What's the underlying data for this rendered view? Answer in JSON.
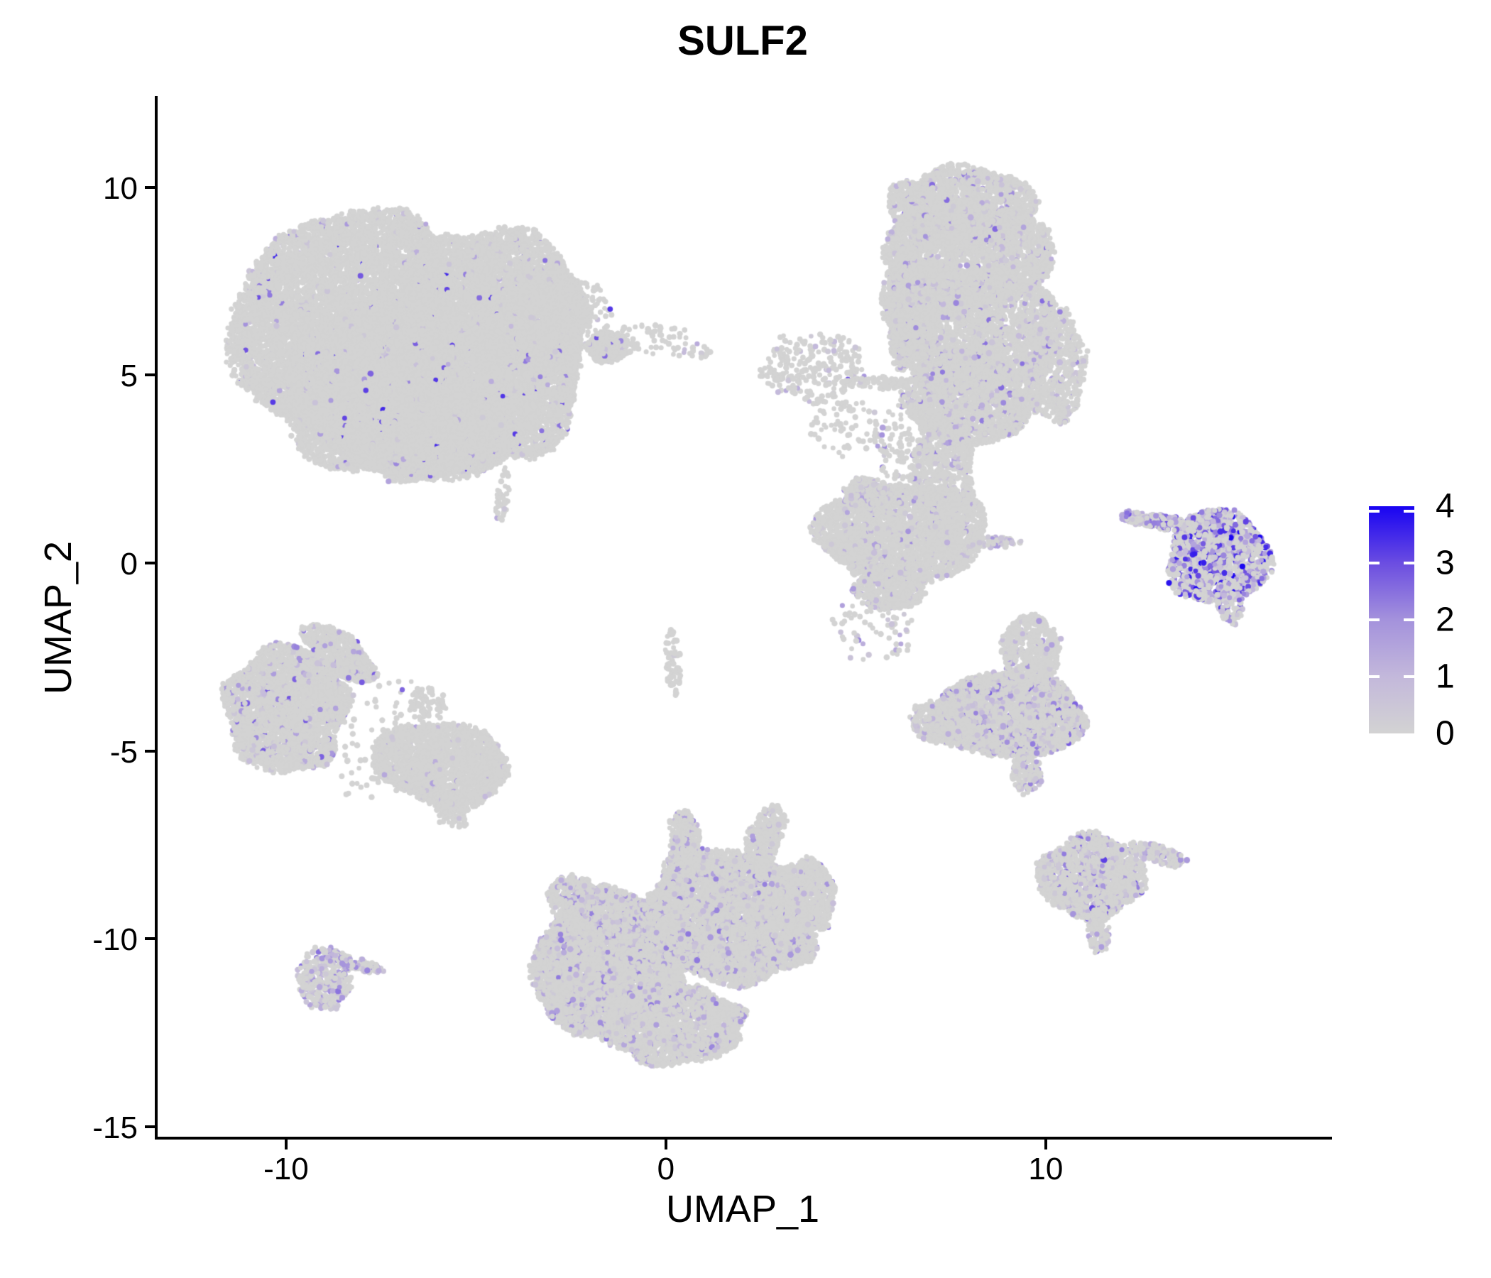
{
  "page": {
    "background": "#ffffff",
    "axis_color": "#000000"
  },
  "chart_data": {
    "type": "scatter",
    "title": "SULF2",
    "xlabel": "UMAP_1",
    "ylabel": "UMAP_2",
    "xlim": [
      -13.42,
      17.46
    ],
    "ylim": [
      -15.31,
      12.4
    ],
    "grid": false,
    "x_ticks": {
      "values": [
        -10,
        0,
        10
      ],
      "labels": [
        "-10",
        "0",
        "10"
      ]
    },
    "y_ticks": {
      "values": [
        10,
        5,
        0,
        -5,
        -10,
        -15
      ],
      "labels": [
        "10",
        "5",
        "0",
        "-5",
        "-10",
        "-15"
      ]
    },
    "legend": {
      "position": "right",
      "break_values": [
        4,
        3,
        2,
        1,
        0
      ],
      "break_labels": [
        "4",
        "3",
        "2",
        "1",
        "0"
      ],
      "low_color": "#d3d3d3",
      "high_color": "#1803f2"
    },
    "color_scale_stops": [
      [
        0.0,
        "#d3d3d3"
      ],
      [
        0.25,
        "#c3b8db"
      ],
      [
        0.5,
        "#a492dc"
      ],
      [
        0.75,
        "#6b4de1"
      ],
      [
        1.0,
        "#1803f2"
      ]
    ],
    "point_radius_px": [
      3.3,
      4.4
    ],
    "expression_range": [
      0,
      4
    ],
    "clusters": [
      {
        "name": "big-left-blob",
        "frac": 0.035,
        "vmax": 3.6,
        "vpow": 2.4,
        "blobs": [
          {
            "cx": -8.3,
            "cy": 6.2,
            "rx": 3.05,
            "ry": 3.2,
            "n": 8500
          },
          {
            "cx": -4.7,
            "cy": 5.8,
            "rx": 2.55,
            "ry": 3.25,
            "n": 7500
          },
          {
            "cx": -6.7,
            "cy": 4.5,
            "rx": 3.4,
            "ry": 2.3,
            "n": 6500
          },
          {
            "cx": -6.7,
            "cy": 3.2,
            "rx": 1.8,
            "ry": 1.0,
            "n": 1500
          },
          {
            "cx": -3.1,
            "cy": 6.6,
            "rx": 1.05,
            "ry": 1.35,
            "n": 1200
          },
          {
            "cx": -2.2,
            "cy": 6.6,
            "rx": 0.75,
            "ry": 0.95,
            "n": 130,
            "frac": 0.02
          },
          {
            "cx": -5.9,
            "cy": 7.6,
            "rx": 1.3,
            "ry": 0.55,
            "n": 120,
            "frac": 0.02
          }
        ]
      },
      {
        "name": "top-mid-clump",
        "frac": 0.05,
        "vmax": 3.0,
        "vpow": 2,
        "blobs": [
          {
            "cx": -1.55,
            "cy": 5.75,
            "rx": 0.55,
            "ry": 0.42,
            "n": 260
          },
          {
            "cx": -0.3,
            "cy": 5.95,
            "rx": 1.2,
            "ry": 0.45,
            "n": 70
          },
          {
            "cx": 0.9,
            "cy": 5.6,
            "rx": 0.3,
            "ry": 0.2,
            "n": 14
          }
        ]
      },
      {
        "name": "top-right-tall",
        "frac": 0.1,
        "vmax": 2.6,
        "vpow": 2,
        "blobs": [
          {
            "cx": 7.8,
            "cy": 9.5,
            "rx": 1.95,
            "ry": 1.05,
            "n": 1600
          },
          {
            "cx": 7.9,
            "cy": 8.2,
            "rx": 2.25,
            "ry": 1.5,
            "n": 2600
          },
          {
            "cx": 8.1,
            "cy": 6.2,
            "rx": 2.3,
            "ry": 1.7,
            "n": 2800
          },
          {
            "cx": 8.0,
            "cy": 4.4,
            "rx": 1.75,
            "ry": 1.3,
            "n": 1700
          },
          {
            "cx": 6.4,
            "cy": 6.9,
            "rx": 0.7,
            "ry": 1.5,
            "n": 700
          },
          {
            "cx": 7.3,
            "cy": 2.6,
            "rx": 0.8,
            "ry": 1.7,
            "n": 800,
            "frac": 0.13
          },
          {
            "cx": 10.3,
            "cy": 5.2,
            "rx": 0.75,
            "ry": 1.5,
            "n": 550,
            "frac": 0.13
          },
          {
            "cx": 6.1,
            "cy": 3.1,
            "rx": 0.6,
            "ry": 1.0,
            "rot": 20,
            "n": 90
          }
        ]
      },
      {
        "name": "scatter-left-of-tall",
        "frac": 0.06,
        "vmax": 3.0,
        "vpow": 2,
        "blobs": [
          {
            "cx": 3.9,
            "cy": 5.2,
            "rx": 1.35,
            "ry": 0.95,
            "n": 240
          },
          {
            "cx": 5.7,
            "cy": 4.8,
            "rx": 1.05,
            "ry": 0.16,
            "n": 110,
            "frac": 0.02
          },
          {
            "cx": 4.8,
            "cy": 3.6,
            "rx": 1.0,
            "ry": 0.8,
            "n": 60,
            "frac": 0.02
          }
        ]
      },
      {
        "name": "mid-right-wide",
        "frac": 0.09,
        "vmax": 2.2,
        "vpow": 2,
        "blobs": [
          {
            "cx": 6.2,
            "cy": 0.8,
            "rx": 2.25,
            "ry": 1.35,
            "n": 2600
          },
          {
            "cx": 5.3,
            "cy": 1.9,
            "rx": 0.6,
            "ry": 0.4,
            "n": 220,
            "frac": 0.18
          },
          {
            "cx": 8.55,
            "cy": 0.55,
            "rx": 0.75,
            "ry": 0.16,
            "n": 70,
            "frac": 0.35,
            "vmax": 2.0
          },
          {
            "cx": 5.9,
            "cy": -0.7,
            "rx": 0.95,
            "ry": 0.55,
            "n": 450
          },
          {
            "cx": 5.4,
            "cy": -1.8,
            "rx": 1.2,
            "ry": 0.8,
            "n": 60,
            "frac": 0.15
          }
        ]
      },
      {
        "name": "far-right-crescent",
        "frac": 0.55,
        "vmax": 4.0,
        "vpow": 1.4,
        "blobs": [
          {
            "cx": 14.55,
            "cy": 0.15,
            "rx": 1.35,
            "ry": 1.25,
            "n": 1400
          },
          {
            "cx": 13.0,
            "cy": 1.1,
            "rx": 1.1,
            "ry": 0.2,
            "rot": -10,
            "n": 230,
            "frac": 0.45,
            "vmax": 3.0
          },
          {
            "cx": 14.85,
            "cy": -1.05,
            "rx": 0.33,
            "ry": 0.6,
            "rot": 15,
            "n": 130,
            "frac": 0.5,
            "vmax": 3.4
          }
        ]
      },
      {
        "name": "right-mid-blob",
        "frac": 0.27,
        "vmax": 2.8,
        "vpow": 2,
        "blobs": [
          {
            "cx": 9.0,
            "cy": -4.05,
            "rx": 2.05,
            "ry": 1.15,
            "n": 2700
          },
          {
            "cx": 9.6,
            "cy": -2.3,
            "rx": 0.8,
            "ry": 0.9,
            "n": 520,
            "frac": 0.08,
            "vmax": 2.0
          },
          {
            "cx": 7.2,
            "cy": -4.2,
            "rx": 0.75,
            "ry": 0.6,
            "n": 280,
            "frac": 0.12,
            "vmax": 2.0
          },
          {
            "cx": 9.5,
            "cy": -5.6,
            "rx": 0.4,
            "ry": 0.55,
            "n": 140,
            "frac": 0.22,
            "vmax": 2.4
          }
        ]
      },
      {
        "name": "left-mid-teardrop",
        "frac": 0.11,
        "vmax": 2.9,
        "vpow": 2,
        "blobs": [
          {
            "cx": -10.0,
            "cy": -3.9,
            "rx": 1.6,
            "ry": 1.7,
            "n": 2700
          },
          {
            "cx": -8.6,
            "cy": -2.4,
            "rx": 1.15,
            "ry": 0.5,
            "rot": -38,
            "n": 520,
            "frac": 0.13
          },
          {
            "cx": -5.9,
            "cy": -5.35,
            "rx": 1.8,
            "ry": 1.1,
            "rot": -10,
            "n": 2000,
            "frac": 0.045,
            "vmax": 1.8
          },
          {
            "cx": -5.6,
            "cy": -6.6,
            "rx": 0.45,
            "ry": 0.5,
            "n": 110,
            "frac": 0.05,
            "vmax": 1.5
          },
          {
            "cx": -6.3,
            "cy": -3.8,
            "rx": 0.5,
            "ry": 0.5,
            "n": 60,
            "frac": 0.05
          },
          {
            "cx": -7.9,
            "cy": -4.6,
            "rx": 2.4,
            "ry": 1.7,
            "n": 130,
            "frac": 0.03
          }
        ]
      },
      {
        "name": "center-sliver",
        "frac": 0.03,
        "vmax": 1.5,
        "vpow": 2,
        "blobs": [
          {
            "cx": 0.18,
            "cy": -2.6,
            "rx": 0.2,
            "ry": 0.9,
            "rot": 4,
            "n": 70
          }
        ]
      },
      {
        "name": "center-left-sliver",
        "frac": 0.04,
        "vmax": 1.5,
        "vpow": 2,
        "blobs": [
          {
            "cx": -4.3,
            "cy": 1.8,
            "rx": 0.17,
            "ry": 0.75,
            "rot": -6,
            "n": 45
          }
        ]
      },
      {
        "name": "bottom-center-big",
        "frac": 0.2,
        "vmax": 2.4,
        "vpow": 2,
        "blobs": [
          {
            "cx": -1.5,
            "cy": -10.7,
            "rx": 2.0,
            "ry": 1.95,
            "n": 5200,
            "frac": 0.22
          },
          {
            "cx": 1.7,
            "cy": -9.4,
            "rx": 2.25,
            "ry": 1.75,
            "rot": -18,
            "n": 4700,
            "frac": 0.19
          },
          {
            "cx": 0.2,
            "cy": -12.3,
            "rx": 1.85,
            "ry": 1.05,
            "n": 2100,
            "frac": 0.17
          },
          {
            "cx": 0.5,
            "cy": -7.4,
            "rx": 0.4,
            "ry": 0.85,
            "rot": 6,
            "n": 300,
            "frac": 0.14
          },
          {
            "cx": 2.6,
            "cy": -7.3,
            "rx": 0.45,
            "ry": 0.9,
            "rot": -22,
            "n": 300,
            "frac": 0.12
          },
          {
            "cx": 3.7,
            "cy": -8.9,
            "rx": 0.75,
            "ry": 1.05,
            "n": 650,
            "frac": 0.14
          },
          {
            "cx": -2.5,
            "cy": -8.9,
            "rx": 0.6,
            "ry": 0.6,
            "n": 250,
            "frac": 0.2
          }
        ]
      },
      {
        "name": "bottom-left-small",
        "frac": 0.38,
        "vmax": 2.6,
        "vpow": 1.8,
        "blobs": [
          {
            "cx": -9.0,
            "cy": -11.05,
            "rx": 0.7,
            "ry": 0.85,
            "n": 430
          },
          {
            "cx": -8.05,
            "cy": -10.7,
            "rx": 0.6,
            "ry": 0.17,
            "rot": -14,
            "n": 100,
            "frac": 0.35,
            "vmax": 2.4
          }
        ]
      },
      {
        "name": "bottom-right-fan",
        "frac": 0.22,
        "vmax": 3.2,
        "vpow": 2,
        "blobs": [
          {
            "cx": 11.2,
            "cy": -8.35,
            "rx": 1.4,
            "ry": 1.1,
            "n": 1600
          },
          {
            "cx": 12.95,
            "cy": -7.75,
            "rx": 0.8,
            "ry": 0.24,
            "rot": -16,
            "n": 170,
            "frac": 0.3,
            "vmax": 2.4
          },
          {
            "cx": 11.4,
            "cy": -9.85,
            "rx": 0.3,
            "ry": 0.55,
            "n": 100,
            "frac": 0.25,
            "vmax": 2.4
          }
        ]
      }
    ]
  }
}
